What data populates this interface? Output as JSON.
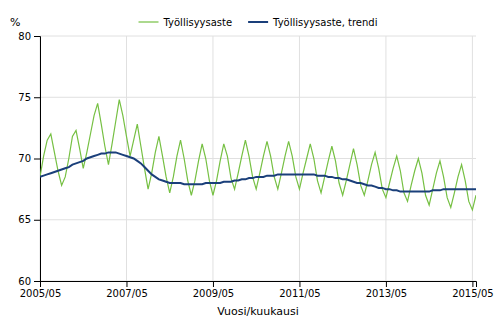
{
  "chart_data": {
    "type": "line",
    "xlabel": "Vuosi/kuukausi",
    "ylabel": "%",
    "categories": [
      "2005/05",
      null,
      null,
      null,
      null,
      null,
      null,
      null,
      null,
      null,
      null,
      null,
      null,
      null,
      null,
      null,
      null,
      null,
      null,
      null,
      null,
      null,
      null,
      null,
      "2007/05",
      null,
      null,
      null,
      null,
      null,
      null,
      null,
      null,
      null,
      null,
      null,
      null,
      null,
      null,
      null,
      null,
      null,
      null,
      null,
      null,
      null,
      null,
      null,
      "2009/05",
      null,
      null,
      null,
      null,
      null,
      null,
      null,
      null,
      null,
      null,
      null,
      null,
      null,
      null,
      null,
      null,
      null,
      null,
      null,
      null,
      null,
      null,
      null,
      "2011/05",
      null,
      null,
      null,
      null,
      null,
      null,
      null,
      null,
      null,
      null,
      null,
      null,
      null,
      null,
      null,
      null,
      null,
      null,
      null,
      null,
      null,
      null,
      null,
      "2013/05",
      null,
      null,
      null,
      null,
      null,
      null,
      null,
      null,
      null,
      null,
      null,
      null,
      null,
      null,
      null,
      null,
      null,
      null,
      null,
      null,
      null,
      null,
      null,
      "2015/05",
      null
    ],
    "series": [
      {
        "name": "Työllisyysaste",
        "color": "#76c043",
        "values": [
          68.5,
          70.2,
          71.5,
          72.0,
          70.5,
          69.0,
          67.8,
          68.5,
          70.0,
          71.8,
          72.3,
          70.8,
          69.2,
          70.5,
          72.0,
          73.5,
          74.5,
          72.8,
          71.0,
          69.5,
          71.2,
          73.0,
          74.8,
          73.5,
          71.8,
          70.2,
          71.5,
          72.8,
          71.0,
          69.2,
          67.5,
          68.8,
          70.5,
          71.8,
          70.2,
          68.5,
          67.2,
          68.5,
          70.2,
          71.5,
          70.0,
          68.2,
          67.0,
          68.2,
          69.8,
          71.2,
          70.0,
          68.2,
          67.0,
          68.2,
          69.8,
          71.2,
          70.2,
          68.4,
          67.5,
          68.8,
          70.2,
          71.5,
          70.2,
          68.5,
          67.5,
          68.8,
          70.2,
          71.4,
          70.2,
          68.5,
          67.5,
          68.8,
          70.2,
          71.4,
          70.2,
          68.5,
          67.5,
          68.8,
          70.0,
          71.2,
          70.0,
          68.2,
          67.2,
          68.5,
          69.8,
          71.0,
          69.8,
          68.0,
          67.0,
          68.2,
          69.5,
          70.8,
          69.5,
          67.8,
          67.0,
          68.2,
          69.5,
          70.5,
          69.2,
          67.5,
          66.8,
          68.0,
          69.2,
          70.2,
          69.0,
          67.2,
          66.5,
          67.8,
          69.0,
          70.0,
          68.8,
          67.0,
          66.2,
          67.5,
          68.8,
          69.8,
          68.5,
          66.8,
          66.0,
          67.2,
          68.5,
          69.5,
          68.2,
          66.5,
          65.8,
          67.0
        ]
      },
      {
        "name": "Työllisyysaste, trendi",
        "color": "#1a3f7a",
        "values": [
          68.5,
          68.6,
          68.7,
          68.8,
          68.9,
          69.0,
          69.1,
          69.2,
          69.3,
          69.5,
          69.6,
          69.7,
          69.8,
          70.0,
          70.1,
          70.2,
          70.3,
          70.4,
          70.4,
          70.5,
          70.5,
          70.5,
          70.4,
          70.3,
          70.2,
          70.1,
          70.0,
          69.8,
          69.6,
          69.3,
          69.0,
          68.7,
          68.5,
          68.3,
          68.2,
          68.1,
          68.0,
          68.0,
          68.0,
          68.0,
          67.9,
          67.9,
          67.9,
          67.9,
          67.9,
          67.9,
          68.0,
          68.0,
          68.0,
          68.0,
          68.0,
          68.1,
          68.1,
          68.1,
          68.2,
          68.2,
          68.3,
          68.3,
          68.4,
          68.4,
          68.5,
          68.5,
          68.5,
          68.6,
          68.6,
          68.6,
          68.7,
          68.7,
          68.7,
          68.7,
          68.7,
          68.7,
          68.7,
          68.7,
          68.7,
          68.7,
          68.7,
          68.6,
          68.6,
          68.6,
          68.5,
          68.5,
          68.4,
          68.4,
          68.3,
          68.3,
          68.2,
          68.1,
          68.0,
          68.0,
          67.9,
          67.8,
          67.8,
          67.7,
          67.6,
          67.6,
          67.5,
          67.5,
          67.4,
          67.4,
          67.3,
          67.3,
          67.3,
          67.3,
          67.3,
          67.3,
          67.3,
          67.3,
          67.3,
          67.4,
          67.4,
          67.4,
          67.5,
          67.5,
          67.5,
          67.5,
          67.5,
          67.5,
          67.5,
          67.5,
          67.5,
          67.5
        ]
      }
    ],
    "ylim": [
      60,
      80
    ],
    "yticks": [
      60,
      65,
      70,
      75,
      80
    ],
    "grid": true,
    "legend": "top"
  }
}
